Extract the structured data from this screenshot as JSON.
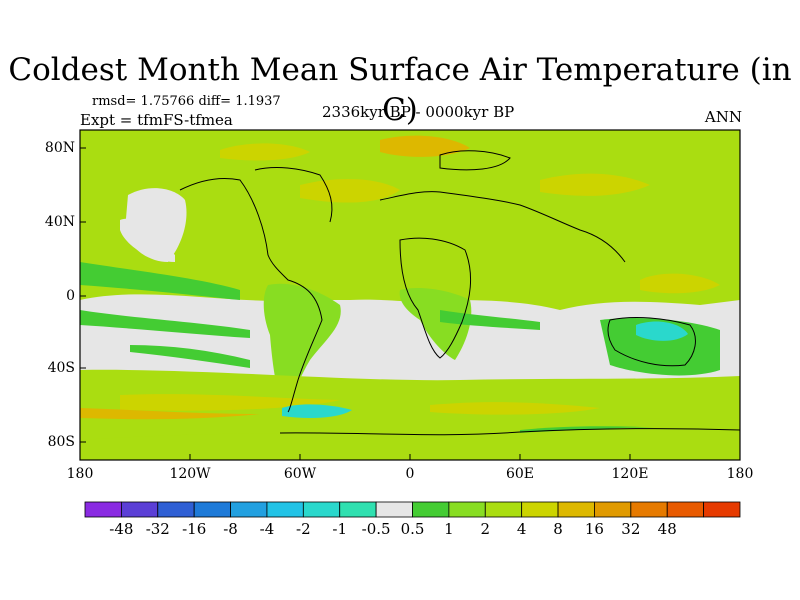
{
  "title": "Coldest Month Mean Surface Air Temperature (in C)",
  "stats": "rmsd= 1.75766 diff= 1.1937",
  "experiment": "Expt = tfmFS-tfmea",
  "period": "2336kyr BP - 0000kyr BP",
  "season": "ANN",
  "lat_ticks": [
    "80N",
    "40N",
    "0",
    "40S",
    "80S"
  ],
  "lon_ticks": [
    "180",
    "120W",
    "60W",
    "0",
    "60E",
    "120E",
    "180"
  ],
  "colorbar": {
    "colors": [
      "#8a2be2",
      "#5b3fd6",
      "#2f5fd4",
      "#1e7ad8",
      "#22a0e0",
      "#22c3e6",
      "#2ad8cc",
      "#30e0b0",
      "#e6e6e6",
      "#44cc33",
      "#88dd22",
      "#aadd11",
      "#ccd400",
      "#ddb800",
      "#e09a00",
      "#e67a00",
      "#e85a00",
      "#e63a00"
    ],
    "labels": [
      "-48",
      "-32",
      "-16",
      "-8",
      "-4",
      "-2",
      "-1",
      "-0.5",
      "0.5",
      "1",
      "2",
      "4",
      "8",
      "16",
      "32",
      "48"
    ]
  }
}
